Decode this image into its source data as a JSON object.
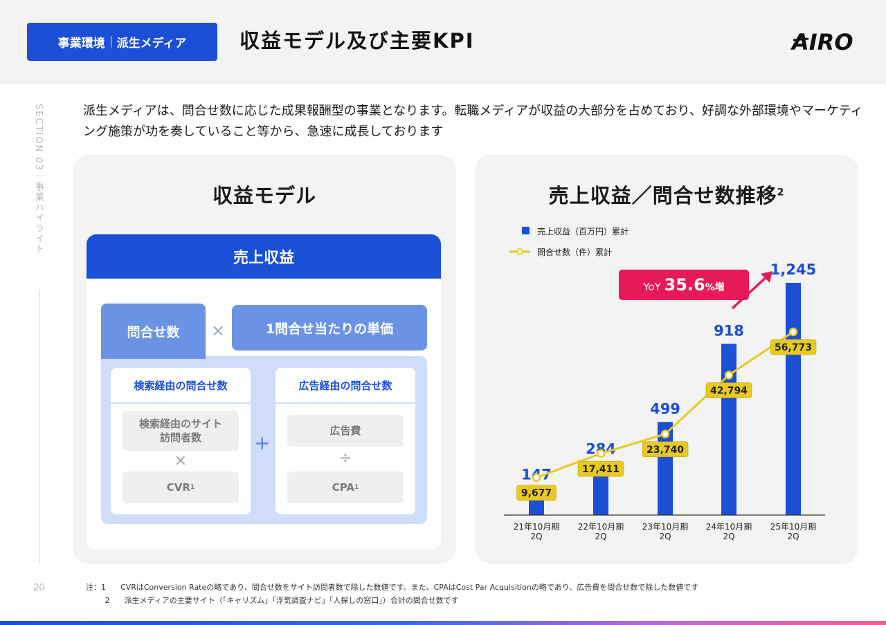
{
  "header": {
    "tag_left": "事業環境",
    "tag_right": "派生メディア",
    "title": "収益モデル及び主要KPI",
    "logo_text": "AIRO"
  },
  "side": {
    "section_label": "SECTION 03｜事業ハイライト",
    "page_number": "20"
  },
  "intro": "派生メディアは、問合せ数に応じた成果報酬型の事業となります。転職メディアが収益の大部分を占めており、好調な外部環境やマーケティング施策が功を奏していること等から、急速に成長しております",
  "revenue_model": {
    "title": "収益モデル",
    "revenue": "売上収益",
    "inquiries": "問合せ数",
    "times": "×",
    "unit_price": "1問合せ当たりの単価",
    "plus": "+",
    "search": {
      "header": "検索経由の問合せ数",
      "visitors": "検索経由のサイト訪問者数",
      "op": "×",
      "cvr": "CVR",
      "cvr_note": "1"
    },
    "ads": {
      "header": "広告経由の問合せ数",
      "cost": "広告費",
      "op": "÷",
      "cpa": "CPA",
      "cpa_note": "1"
    }
  },
  "chart_panel": {
    "title": "売上収益／問合せ数推移",
    "title_note": "2",
    "yoy_prefix": "YoY",
    "yoy_value": "35.6",
    "yoy_suffix": "%増"
  },
  "chart_data": {
    "type": "bar",
    "categories": [
      "21年10月期 2Q",
      "22年10月期 2Q",
      "23年10月期 2Q",
      "24年10月期 2Q",
      "25年10月期 2Q"
    ],
    "category_lines": [
      [
        "21年10月期",
        "2Q"
      ],
      [
        "22年10月期",
        "2Q"
      ],
      [
        "23年10月期",
        "2Q"
      ],
      [
        "24年10月期",
        "2Q"
      ],
      [
        "25年10月期",
        "2Q"
      ]
    ],
    "series": [
      {
        "name": "売上収益（百万円）累計",
        "type": "bar",
        "values": [
          147,
          284,
          499,
          918,
          1245
        ],
        "labels": [
          "147",
          "284",
          "499",
          "918",
          "1,245"
        ],
        "color": "#1a4fd6"
      },
      {
        "name": "問合せ数（件）累計",
        "type": "line",
        "values": [
          9677,
          17411,
          23740,
          42794,
          56773
        ],
        "labels": [
          "9,677",
          "17,411",
          "23,740",
          "42,794",
          "56,773"
        ],
        "color": "#e8c923"
      }
    ],
    "legend_position": "top-left",
    "grid": false
  },
  "footnotes": {
    "note1_label": "注：1",
    "note1": "CVRはConversion Rateの略であり、問合せ数をサイト訪問者数で除した数値です。また、CPAはCost Par Acquisitionの略であり、広告費を問合せ数で除した数値です",
    "note2_label": "2",
    "note2": "派生メディアの主要サイト（「キャリズム」「浮気調査ナビ」「人探しの窓口」）合計の問合せ数です"
  },
  "colors": {
    "brand_blue": "#1a4fd6",
    "light_blue": "#6a93e6",
    "pale_blue": "#cfdcfa",
    "yellow": "#e8c923",
    "yoy_pink": "#e8195a"
  }
}
